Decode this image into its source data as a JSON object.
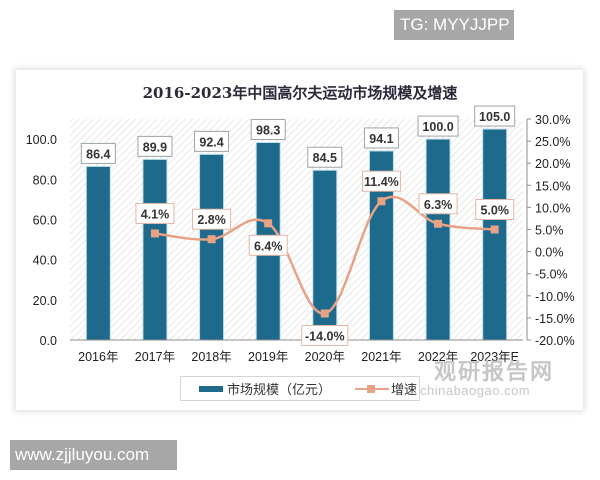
{
  "overlay": {
    "top_right_badge": "TG: MYYJJPP",
    "bottom_left_badge": "www.zjjluyou.com"
  },
  "watermark": {
    "cn": "观研报告网",
    "en": "chinabaogao.com"
  },
  "colors": {
    "bar": "#1e6a8d",
    "line": "#e8a386",
    "marker": "#e8a386",
    "label_border": "#9aa4aa",
    "line_label_border": "#e2b7a5"
  },
  "chart_data": {
    "type": "bar+line",
    "title": "2016-2023年中国高尔夫运动市场规模及增速",
    "categories": [
      "2016年",
      "2017年",
      "2018年",
      "2019年",
      "2020年",
      "2021年",
      "2022年",
      "2023年E"
    ],
    "series": [
      {
        "name": "市场规模（亿元）",
        "type": "bar",
        "axis": "left",
        "values": [
          86.4,
          89.9,
          92.4,
          98.3,
          84.5,
          94.1,
          100.0,
          105.0
        ],
        "labels": [
          "86.4",
          "89.9",
          "92.4",
          "98.3",
          "84.5",
          "94.1",
          "100.0",
          "105.0"
        ]
      },
      {
        "name": "增速",
        "type": "line",
        "axis": "right",
        "values": [
          null,
          4.1,
          2.8,
          6.4,
          -14.0,
          11.4,
          6.3,
          5.0
        ],
        "labels": [
          "",
          "4.1%",
          "2.8%",
          "6.4%",
          "-14.0%",
          "11.4%",
          "6.3%",
          "5.0%"
        ]
      }
    ],
    "left_axis": {
      "ticks": [
        "0.0",
        "20.0",
        "40.0",
        "60.0",
        "80.0",
        "100.0"
      ],
      "tick_values": [
        0,
        20,
        40,
        60,
        80,
        100
      ],
      "range": [
        0,
        110
      ]
    },
    "right_axis": {
      "ticks": [
        "-20.0%",
        "-15.0%",
        "-10.0%",
        "-5.0%",
        "0.0%",
        "5.0%",
        "10.0%",
        "15.0%",
        "20.0%",
        "25.0%",
        "30.0%"
      ],
      "tick_values": [
        -20,
        -15,
        -10,
        -5,
        0,
        5,
        10,
        15,
        20,
        25,
        30
      ],
      "range": [
        -20,
        30
      ]
    },
    "legend": {
      "position": "bottom",
      "entries": [
        "市场规模（亿元）",
        "增速"
      ]
    },
    "grid": false,
    "background": "diagonal-hatch"
  }
}
